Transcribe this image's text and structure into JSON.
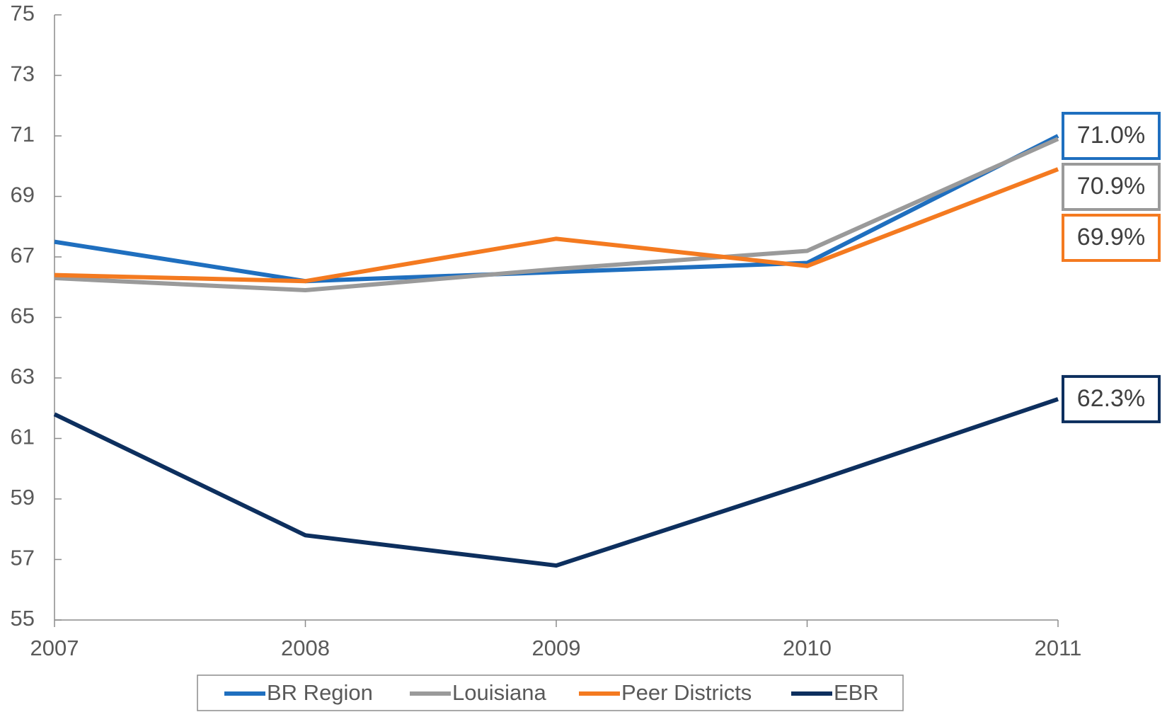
{
  "chart_data": {
    "type": "line",
    "categories": [
      "2007",
      "2008",
      "2009",
      "2010",
      "2011"
    ],
    "series": [
      {
        "name": "BR Region",
        "color": "#1f6fbf",
        "values": [
          67.5,
          66.2,
          66.5,
          66.8,
          71.0
        ],
        "value_labels": [
          null,
          null,
          null,
          null,
          "71.0%"
        ]
      },
      {
        "name": "Louisiana",
        "color": "#9a9a9a",
        "values": [
          66.3,
          65.9,
          66.6,
          67.2,
          70.9
        ],
        "value_labels": [
          null,
          null,
          null,
          null,
          "70.9%"
        ]
      },
      {
        "name": "Peer Districts",
        "color": "#f47a20",
        "values": [
          66.4,
          66.2,
          67.6,
          66.7,
          69.9
        ],
        "value_labels": [
          null,
          null,
          null,
          null,
          "69.9%"
        ]
      },
      {
        "name": "EBR",
        "color": "#0d2f5e",
        "values": [
          61.8,
          57.8,
          56.8,
          59.5,
          62.3
        ],
        "value_labels": [
          null,
          null,
          null,
          null,
          "62.3%"
        ]
      }
    ],
    "ylim": [
      55,
      75
    ],
    "yticks": [
      55,
      57,
      59,
      61,
      63,
      65,
      67,
      69,
      71,
      73,
      75
    ],
    "legend": "bottom",
    "grid": false
  }
}
